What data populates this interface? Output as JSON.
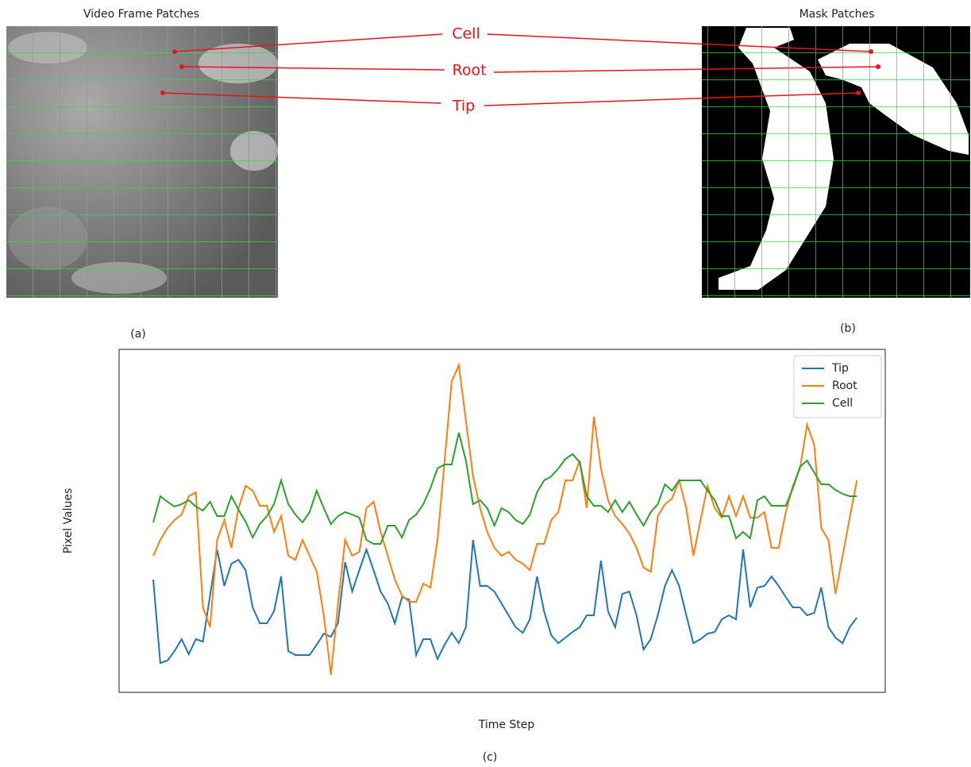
{
  "figure": {
    "panel_a": {
      "title": "Video Frame Patches",
      "label": "(a)"
    },
    "panel_b": {
      "title": "Mask Patches",
      "label": "(b)"
    },
    "panel_c": {
      "label": "(c)"
    },
    "annotations": [
      "Cell",
      "Root",
      "Tip"
    ]
  },
  "chart_data": {
    "type": "line",
    "ylabel": "Pixel Values",
    "xlabel": "Time Step",
    "xlim": [
      -4.8,
      103
    ],
    "ylim": [
      0,
      432
    ],
    "legend": "upper right",
    "series": [
      {
        "name": "Tip",
        "color": "#1f77b4",
        "values": [
          142,
          37,
          40,
          52,
          67,
          48,
          67,
          64,
          122,
          180,
          134,
          162,
          167,
          154,
          107,
          87,
          87,
          102,
          146,
          52,
          47,
          47,
          47,
          60,
          74,
          70,
          87,
          164,
          127,
          154,
          180,
          154,
          127,
          112,
          87,
          120,
          117,
          47,
          67,
          67,
          42,
          60,
          75,
          62,
          82,
          192,
          134,
          134,
          127,
          112,
          97,
          82,
          75,
          92,
          146,
          102,
          72,
          62,
          69,
          76,
          82,
          97,
          97,
          166,
          102,
          82,
          124,
          127,
          97,
          54,
          67,
          97,
          134,
          154,
          134,
          97,
          62,
          67,
          74,
          76,
          92,
          97,
          92,
          180,
          107,
          132,
          134,
          146,
          134,
          120,
          107,
          107,
          97,
          100,
          132,
          82,
          69,
          62,
          82,
          94
        ]
      },
      {
        "name": "Root",
        "color": "#ff7f0e",
        "values": [
          172,
          192,
          207,
          217,
          224,
          247,
          252,
          107,
          82,
          192,
          217,
          182,
          232,
          260,
          254,
          235,
          235,
          202,
          222,
          172,
          167,
          192,
          172,
          152,
          97,
          22,
          112,
          192,
          172,
          177,
          232,
          240,
          202,
          172,
          142,
          122,
          114,
          114,
          137,
          132,
          192,
          292,
          392,
          412,
          342,
          272,
          232,
          202,
          182,
          172,
          177,
          167,
          162,
          154,
          187,
          187,
          217,
          227,
          267,
          267,
          292,
          232,
          347,
          282,
          242,
          222,
          212,
          200,
          182,
          157,
          152,
          222,
          237,
          244,
          267,
          232,
          172,
          217,
          260,
          232,
          220,
          247,
          222,
          247,
          220,
          220,
          227,
          182,
          182,
          227,
          260,
          282,
          337,
          312,
          207,
          192,
          124,
          172,
          220,
          267
        ]
      },
      {
        "name": "Cell",
        "color": "#2ca02c",
        "values": [
          214,
          247,
          240,
          234,
          237,
          242,
          234,
          229,
          240,
          222,
          222,
          247,
          230,
          215,
          195,
          212,
          222,
          237,
          267,
          237,
          224,
          214,
          227,
          254,
          232,
          212,
          222,
          227,
          224,
          220,
          192,
          187,
          187,
          210,
          210,
          195,
          217,
          224,
          237,
          257,
          282,
          287,
          287,
          327,
          292,
          237,
          242,
          232,
          210,
          232,
          227,
          217,
          212,
          224,
          252,
          267,
          272,
          282,
          294,
          300,
          290,
          247,
          235,
          235,
          227,
          242,
          227,
          240,
          224,
          210,
          227,
          237,
          262,
          254,
          267,
          267,
          267,
          267,
          254,
          242,
          222,
          222,
          194,
          202,
          194,
          242,
          247,
          235,
          235,
          235,
          257,
          284,
          292,
          277,
          262,
          262,
          255,
          250,
          247,
          247
        ]
      }
    ]
  }
}
